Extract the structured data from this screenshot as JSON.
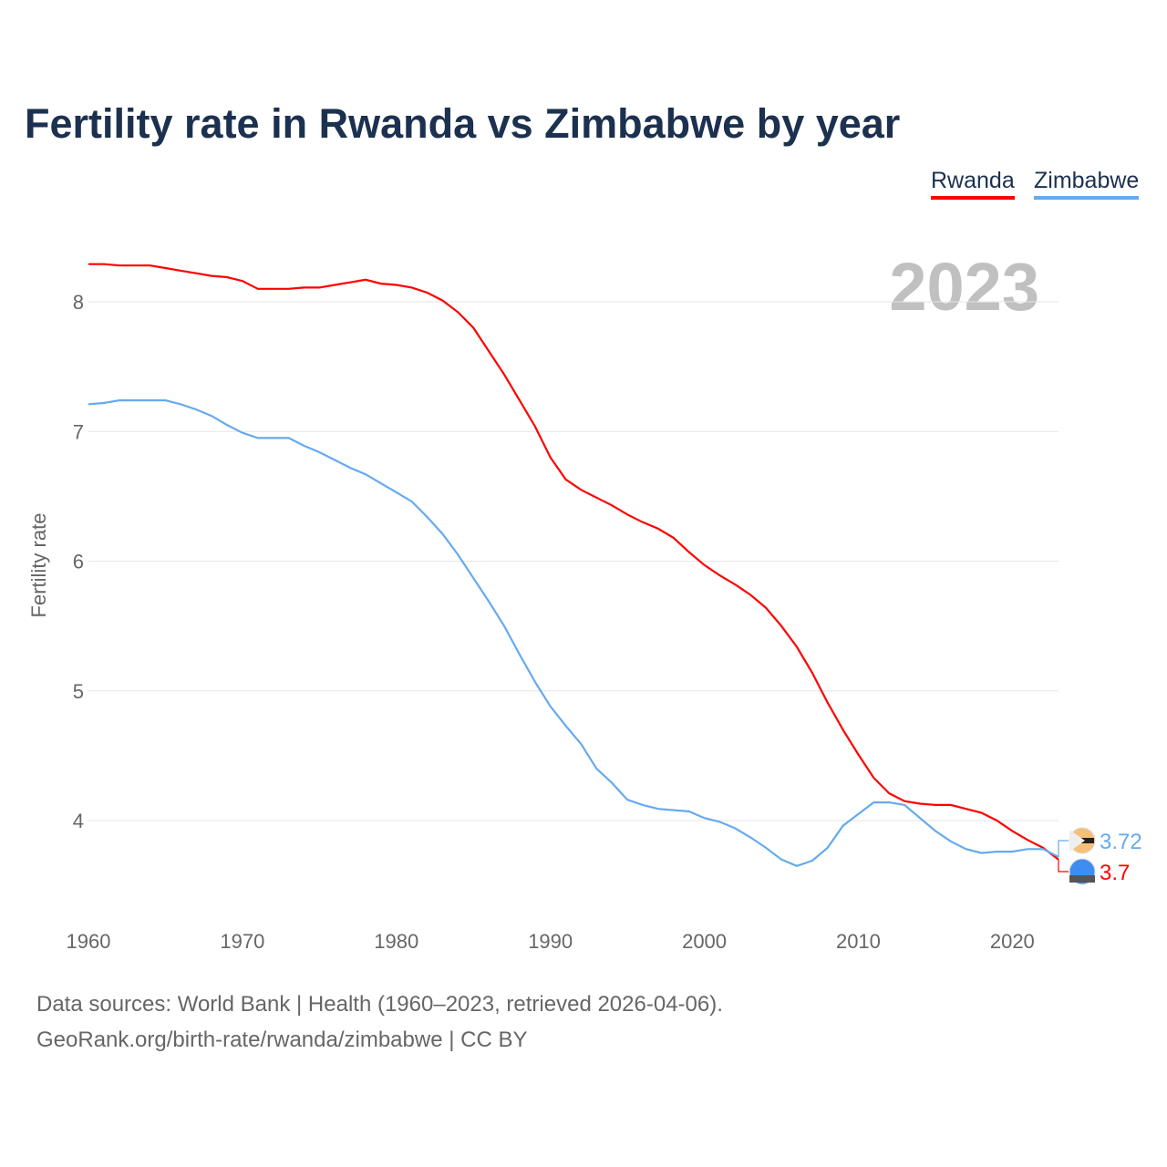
{
  "chart_data": {
    "type": "line",
    "title": "Fertility rate in Rwanda vs Zimbabwe by year",
    "xlabel": "",
    "ylabel": "Fertility rate",
    "year_label": "2023",
    "xlim": [
      1960,
      2023
    ],
    "ylim": [
      3.4,
      8.4
    ],
    "x_ticks": [
      1960,
      1970,
      1980,
      1990,
      2000,
      2010,
      2020
    ],
    "y_ticks": [
      4,
      5,
      6,
      7,
      8
    ],
    "grid": true,
    "legend_position": "top-right",
    "x": [
      1960,
      1961,
      1962,
      1963,
      1964,
      1965,
      1966,
      1967,
      1968,
      1969,
      1970,
      1971,
      1972,
      1973,
      1974,
      1975,
      1976,
      1977,
      1978,
      1979,
      1980,
      1981,
      1982,
      1983,
      1984,
      1985,
      1986,
      1987,
      1988,
      1989,
      1990,
      1991,
      1992,
      1993,
      1994,
      1995,
      1996,
      1997,
      1998,
      1999,
      2000,
      2001,
      2002,
      2003,
      2004,
      2005,
      2006,
      2007,
      2008,
      2009,
      2010,
      2011,
      2012,
      2013,
      2014,
      2015,
      2016,
      2017,
      2018,
      2019,
      2020,
      2021,
      2022,
      2023
    ],
    "series": [
      {
        "name": "Rwanda",
        "color": "#ff0000",
        "end_label": "3.7",
        "values": [
          8.29,
          8.29,
          8.28,
          8.28,
          8.28,
          8.26,
          8.24,
          8.22,
          8.2,
          8.19,
          8.16,
          8.1,
          8.1,
          8.1,
          8.11,
          8.11,
          8.13,
          8.15,
          8.17,
          8.14,
          8.13,
          8.11,
          8.07,
          8.01,
          7.92,
          7.8,
          7.62,
          7.44,
          7.24,
          7.04,
          6.8,
          6.63,
          6.55,
          6.49,
          6.43,
          6.36,
          6.3,
          6.25,
          6.18,
          6.07,
          5.97,
          5.89,
          5.82,
          5.74,
          5.64,
          5.5,
          5.34,
          5.14,
          4.91,
          4.7,
          4.51,
          4.33,
          4.21,
          4.15,
          4.13,
          4.12,
          4.12,
          4.09,
          4.06,
          4.0,
          3.92,
          3.85,
          3.79,
          3.7
        ]
      },
      {
        "name": "Zimbabwe",
        "color": "#66aaee",
        "end_label": "3.72",
        "values": [
          7.21,
          7.22,
          7.24,
          7.24,
          7.24,
          7.24,
          7.21,
          7.17,
          7.12,
          7.05,
          6.99,
          6.95,
          6.95,
          6.95,
          6.89,
          6.84,
          6.78,
          6.72,
          6.67,
          6.6,
          6.53,
          6.46,
          6.34,
          6.21,
          6.05,
          5.87,
          5.69,
          5.5,
          5.28,
          5.07,
          4.88,
          4.73,
          4.59,
          4.4,
          4.29,
          4.16,
          4.12,
          4.09,
          4.08,
          4.07,
          4.02,
          3.99,
          3.94,
          3.87,
          3.79,
          3.7,
          3.65,
          3.69,
          3.79,
          3.96,
          4.05,
          4.14,
          4.14,
          4.12,
          4.02,
          3.92,
          3.84,
          3.78,
          3.75,
          3.76,
          3.76,
          3.78,
          3.78,
          3.72
        ]
      }
    ]
  },
  "legend": {
    "rwanda": "Rwanda",
    "zimbabwe": "Zimbabwe"
  },
  "footer": {
    "line1": "Data sources: World Bank | Health (1960–2023, retrieved 2026-04-06).",
    "line2": "GeoRank.org/birth-rate/rwanda/zimbabwe | CC BY"
  }
}
